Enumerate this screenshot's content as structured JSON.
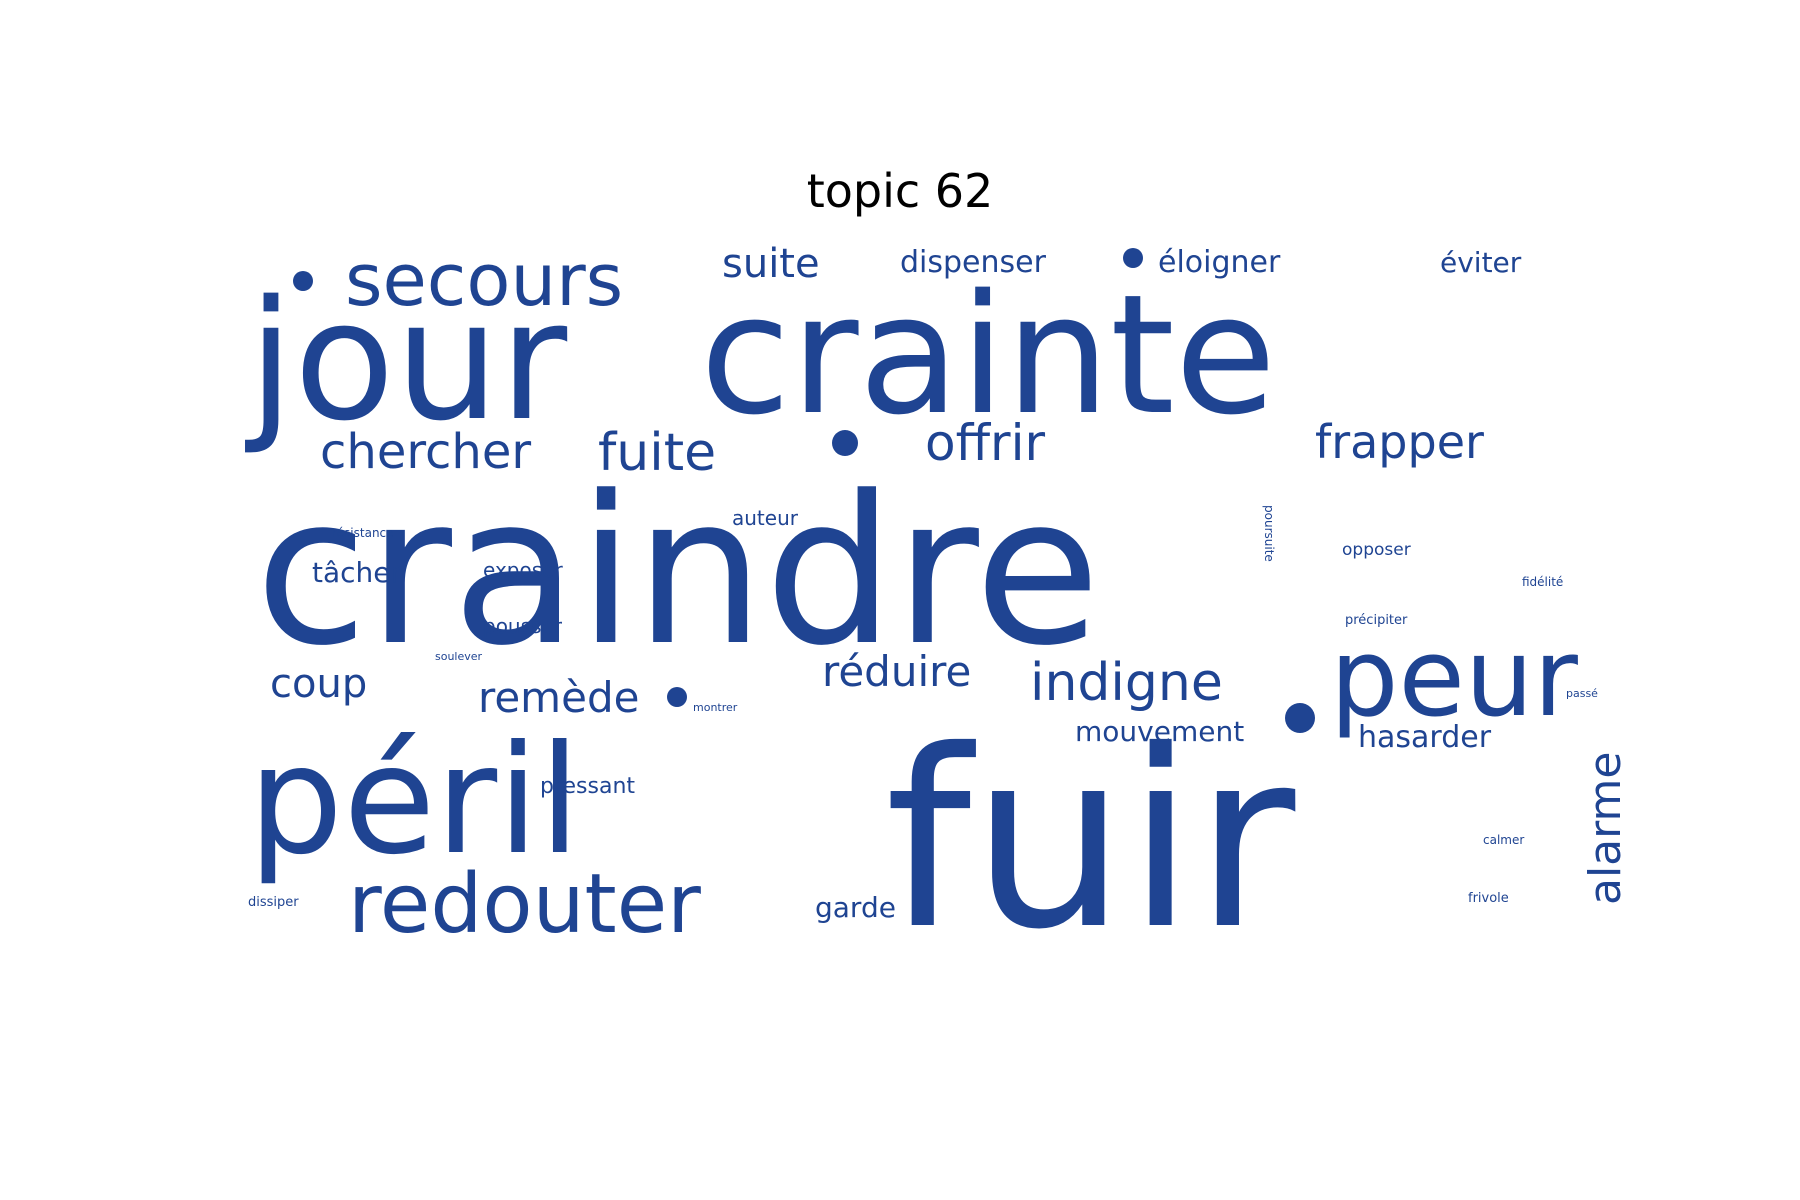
{
  "title": "topic 62",
  "colors": {
    "word": "#1f4492",
    "background": "#ffffff",
    "title": "#000000"
  },
  "words": [
    "craindre",
    "fuir",
    "jour",
    "crainte",
    "péril",
    "redouter",
    "peur",
    "secours",
    "chercher",
    "fuite",
    "offrir",
    "frapper",
    "indigne",
    "suite",
    "dispenser",
    "éloigner",
    "éviter",
    "remède",
    "réduire",
    "coup",
    "alarme",
    "mouvement",
    "hasarder",
    "tâcher",
    "garde",
    "pressant",
    "exposer",
    "pousser",
    "auteur",
    "opposer",
    "poursuite",
    "résistance",
    "fidélité",
    "précipiter",
    "soulever",
    "montrer",
    "passé",
    "calmer",
    "dissiper",
    "frivole"
  ]
}
